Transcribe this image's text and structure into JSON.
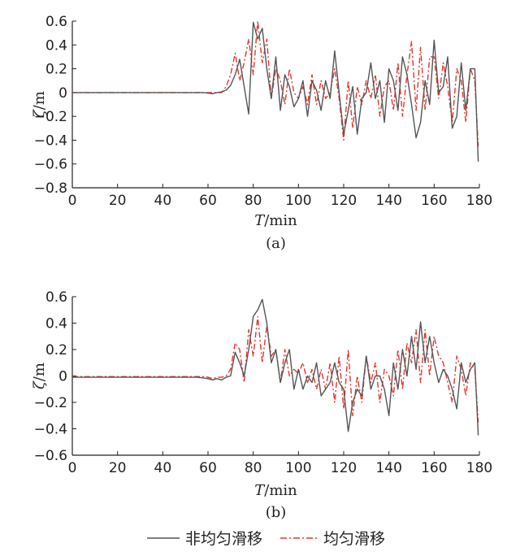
{
  "legend": {
    "nonuniform_label": "非均匀滑移",
    "uniform_label": "均匀滑移"
  },
  "colors": {
    "nonuniform": "#555555",
    "uniform": "#e8342b"
  },
  "chart_data": [
    {
      "type": "line",
      "panel_label": "(a)",
      "xlabel_italic": "T",
      "xlabel_unit": "/min",
      "ylabel_italic": "ζ",
      "ylabel_unit": "/m",
      "xlim": [
        0,
        180
      ],
      "ylim": [
        -0.8,
        0.6
      ],
      "xticks": [
        0,
        20,
        40,
        60,
        80,
        100,
        120,
        140,
        160,
        180
      ],
      "yticks": [
        -0.8,
        -0.6,
        -0.4,
        -0.2,
        0,
        0.2,
        0.4,
        0.6
      ],
      "ytick_labels": [
        "−0.8",
        "−0.6",
        "−0.4",
        "−0.2",
        "0",
        "0.2",
        "0.4",
        "0.6"
      ],
      "grid": false,
      "series": [
        {
          "name": "非均匀滑移",
          "style": "solid",
          "x": [
            0,
            55,
            58,
            60,
            62,
            64,
            66,
            68,
            70,
            72,
            74,
            76,
            78,
            80,
            82,
            84,
            86,
            88,
            90,
            92,
            94,
            96,
            98,
            100,
            102,
            104,
            106,
            108,
            110,
            112,
            114,
            116,
            118,
            120,
            122,
            124,
            126,
            128,
            130,
            132,
            134,
            136,
            138,
            140,
            142,
            144,
            146,
            148,
            150,
            152,
            154,
            156,
            158,
            160,
            162,
            164,
            166,
            168,
            170,
            172,
            174,
            176,
            178,
            179.5
          ],
          "y": [
            0,
            0,
            0,
            -0.005,
            -0.01,
            0,
            0.005,
            0.02,
            0.06,
            0.15,
            0.28,
            0.05,
            -0.18,
            0.59,
            0.45,
            0.54,
            0.2,
            -0.05,
            0.3,
            -0.15,
            0.15,
            0.05,
            -0.12,
            -0.05,
            0.1,
            -0.2,
            0.1,
            0.02,
            -0.15,
            0.1,
            -0.05,
            0.35,
            0.0,
            -0.35,
            -0.15,
            0.05,
            -0.35,
            -0.05,
            0.0,
            0.25,
            -0.05,
            0.1,
            -0.25,
            0.2,
            0.1,
            -0.15,
            0.3,
            0.15,
            -0.1,
            -0.38,
            -0.25,
            0.1,
            -0.1,
            0.44,
            0.0,
            0.05,
            0.3,
            -0.3,
            -0.2,
            0.25,
            -0.15,
            0.2,
            0.2,
            -0.58
          ]
        },
        {
          "name": "均匀滑移",
          "style": "dashdot",
          "x": [
            0,
            55,
            58,
            60,
            62,
            64,
            66,
            68,
            70,
            72,
            74,
            76,
            78,
            80,
            82,
            84,
            86,
            88,
            90,
            92,
            94,
            96,
            98,
            100,
            102,
            104,
            106,
            108,
            110,
            112,
            114,
            116,
            118,
            120,
            122,
            124,
            126,
            128,
            130,
            132,
            134,
            136,
            138,
            140,
            142,
            144,
            146,
            148,
            150,
            152,
            154,
            156,
            158,
            160,
            162,
            164,
            166,
            168,
            170,
            172,
            174,
            176,
            178,
            179.5
          ],
          "y": [
            0,
            0,
            0,
            0,
            0,
            0,
            0,
            0.05,
            0.15,
            0.33,
            0.1,
            0.25,
            0.45,
            0.15,
            0.6,
            0.25,
            0.45,
            -0.05,
            0.2,
            0.1,
            -0.1,
            0.2,
            0.0,
            -0.05,
            0.05,
            -0.1,
            0.15,
            -0.1,
            0.1,
            -0.05,
            0.0,
            0.2,
            -0.05,
            -0.4,
            0.1,
            -0.3,
            0.05,
            -0.1,
            0.1,
            -0.05,
            0.15,
            -0.2,
            0.05,
            0.1,
            -0.15,
            0.25,
            -0.2,
            0.15,
            0.43,
            -0.15,
            0.38,
            -0.15,
            0.3,
            0.3,
            -0.05,
            0.25,
            0.05,
            -0.25,
            0.2,
            0.1,
            -0.25,
            0.2,
            0.1,
            -0.45
          ]
        }
      ]
    },
    {
      "type": "line",
      "panel_label": "(b)",
      "xlabel_italic": "T",
      "xlabel_unit": "/min",
      "ylabel_italic": "ζ",
      "ylabel_unit": "/m",
      "xlim": [
        0,
        180
      ],
      "ylim": [
        -0.6,
        0.6
      ],
      "xticks": [
        0,
        20,
        40,
        60,
        80,
        100,
        120,
        140,
        160,
        180
      ],
      "yticks": [
        -0.6,
        -0.4,
        -0.2,
        0,
        0.2,
        0.4,
        0.6
      ],
      "ytick_labels": [
        "−0.6",
        "−0.4",
        "−0.2",
        "0",
        "0.2",
        "0.4",
        "0.6"
      ],
      "grid": false,
      "series": [
        {
          "name": "非均匀滑移",
          "style": "solid",
          "x": [
            0,
            55,
            58,
            60,
            62,
            64,
            66,
            68,
            70,
            72,
            74,
            76,
            78,
            80,
            82,
            84,
            86,
            88,
            90,
            92,
            94,
            96,
            98,
            100,
            102,
            104,
            106,
            108,
            110,
            112,
            114,
            116,
            118,
            120,
            122,
            124,
            126,
            128,
            130,
            132,
            134,
            136,
            138,
            140,
            142,
            144,
            146,
            148,
            150,
            152,
            154,
            156,
            158,
            160,
            162,
            164,
            166,
            168,
            170,
            172,
            174,
            176,
            178,
            179.5
          ],
          "y": [
            -0.01,
            -0.01,
            -0.015,
            -0.02,
            -0.03,
            -0.02,
            -0.03,
            -0.01,
            0.0,
            0.18,
            0.1,
            0.0,
            0.2,
            0.45,
            0.5,
            0.58,
            0.4,
            0.1,
            0.2,
            -0.05,
            0.1,
            0.2,
            -0.1,
            0.05,
            -0.1,
            0.0,
            -0.05,
            0.1,
            -0.15,
            -0.1,
            -0.05,
            0.1,
            -0.05,
            -0.1,
            -0.42,
            -0.2,
            -0.1,
            -0.15,
            0.15,
            -0.1,
            0.0,
            0.0,
            -0.1,
            -0.3,
            0.1,
            -0.1,
            0.2,
            0.0,
            0.3,
            0.05,
            0.41,
            0.1,
            0.3,
            0.1,
            -0.05,
            0.05,
            0.0,
            -0.1,
            -0.25,
            0.1,
            -0.05,
            0.05,
            0.1,
            -0.45
          ]
        },
        {
          "name": "均匀滑移",
          "style": "dashdot",
          "x": [
            0,
            55,
            58,
            60,
            62,
            64,
            66,
            68,
            70,
            72,
            74,
            76,
            78,
            80,
            82,
            84,
            86,
            88,
            90,
            92,
            94,
            96,
            98,
            100,
            102,
            104,
            106,
            108,
            110,
            112,
            114,
            116,
            118,
            120,
            122,
            124,
            126,
            128,
            130,
            132,
            134,
            136,
            138,
            140,
            142,
            144,
            146,
            148,
            150,
            152,
            154,
            156,
            158,
            160,
            162,
            164,
            166,
            168,
            170,
            172,
            174,
            176,
            178,
            179.5
          ],
          "y": [
            -0.005,
            -0.005,
            -0.005,
            -0.01,
            -0.02,
            -0.01,
            -0.01,
            0.0,
            0.05,
            0.25,
            0.2,
            -0.05,
            0.35,
            0.15,
            0.45,
            0.1,
            0.38,
            0.15,
            0.2,
            -0.05,
            0.2,
            0.0,
            0.05,
            0.02,
            0.1,
            -0.05,
            0.05,
            -0.1,
            0.05,
            -0.1,
            0.1,
            -0.2,
            0.15,
            -0.25,
            0.2,
            -0.3,
            0.0,
            -0.2,
            0.15,
            -0.05,
            0.1,
            -0.2,
            0.05,
            0.0,
            -0.15,
            0.2,
            -0.1,
            0.25,
            0.1,
            0.35,
            -0.05,
            0.35,
            0.0,
            0.3,
            0.15,
            0.1,
            -0.05,
            -0.2,
            0.15,
            0.05,
            -0.15,
            0.1,
            0.05,
            -0.35
          ]
        }
      ]
    }
  ]
}
